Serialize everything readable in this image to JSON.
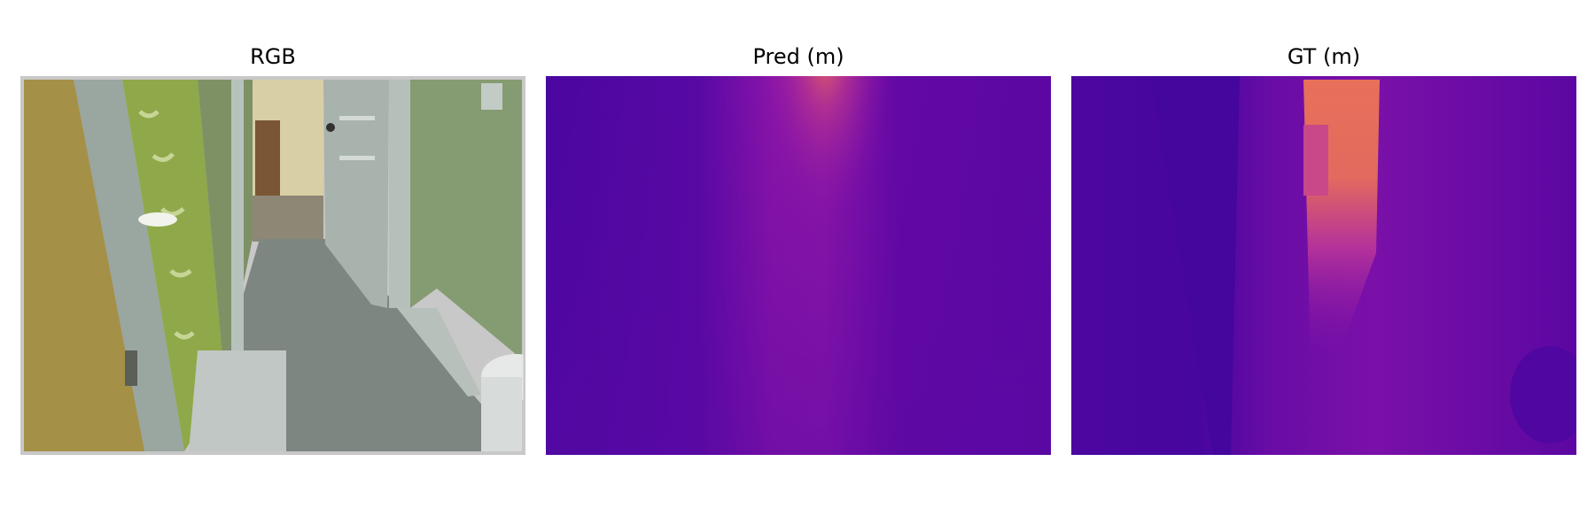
{
  "figure": {
    "panels": [
      {
        "title": "RGB",
        "content": "rgb-photo"
      },
      {
        "title": "Pred (m)",
        "content": "predicted-depth-map",
        "colormap": "plasma"
      },
      {
        "title": "GT (m)",
        "content": "ground-truth-depth-map",
        "colormap": "plasma"
      }
    ]
  },
  "colors": {
    "plasma_low": "#4a07a0",
    "plasma_mid": "#9a1aa8",
    "plasma_high": "#e8705a",
    "wall_green": "#8a9f6e",
    "floor_gray": "#7d8680",
    "door_white": "#c9d0cc"
  }
}
